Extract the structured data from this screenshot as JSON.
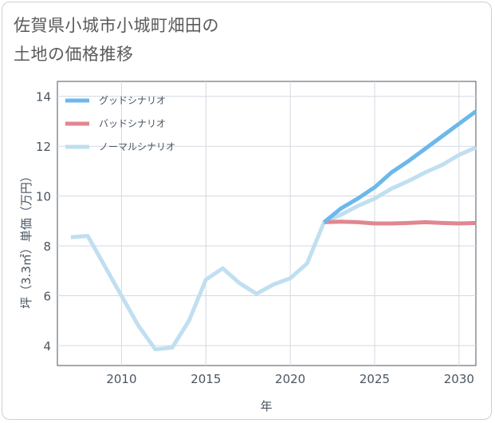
{
  "chart_data": {
    "type": "line",
    "title": [
      "佐賀県小城市小城町畑田の",
      "土地の価格推移"
    ],
    "xlabel": "年",
    "ylabel": "坪（3.3㎡）単価（万円）",
    "xlim": [
      2006.2,
      2031
    ],
    "ylim": [
      3.2,
      14.6
    ],
    "x_ticks": [
      2010,
      2015,
      2020,
      2025,
      2030
    ],
    "y_ticks": [
      4,
      6,
      8,
      10,
      12,
      14
    ],
    "grid": true,
    "legend_position": "top-left",
    "series": [
      {
        "name": "グッドシナリオ",
        "color": "#6cb8eb",
        "x": [
          2022,
          2023,
          2024,
          2025,
          2026,
          2027,
          2028,
          2029,
          2030,
          2031
        ],
        "values": [
          8.95,
          9.5,
          9.9,
          10.35,
          10.95,
          11.4,
          11.9,
          12.4,
          12.9,
          13.4
        ]
      },
      {
        "name": "バッドシナリオ",
        "color": "#e0878f",
        "x": [
          2022,
          2023,
          2024,
          2025,
          2026,
          2027,
          2028,
          2029,
          2030,
          2031
        ],
        "values": [
          8.95,
          8.97,
          8.95,
          8.9,
          8.9,
          8.92,
          8.95,
          8.92,
          8.9,
          8.92
        ]
      },
      {
        "name": "ノーマルシナリオ",
        "color": "#c0dff0",
        "x": [
          2007,
          2008,
          2009,
          2010,
          2011,
          2012,
          2013,
          2014,
          2015,
          2016,
          2017,
          2018,
          2019,
          2020,
          2021,
          2022,
          2023,
          2024,
          2025,
          2026,
          2027,
          2028,
          2029,
          2030,
          2031
        ],
        "values": [
          8.35,
          8.4,
          7.2,
          6.0,
          4.8,
          3.85,
          3.92,
          5.0,
          6.65,
          7.1,
          6.5,
          6.08,
          6.45,
          6.7,
          7.3,
          8.95,
          9.25,
          9.6,
          9.9,
          10.3,
          10.6,
          10.95,
          11.25,
          11.65,
          11.95
        ]
      }
    ]
  }
}
